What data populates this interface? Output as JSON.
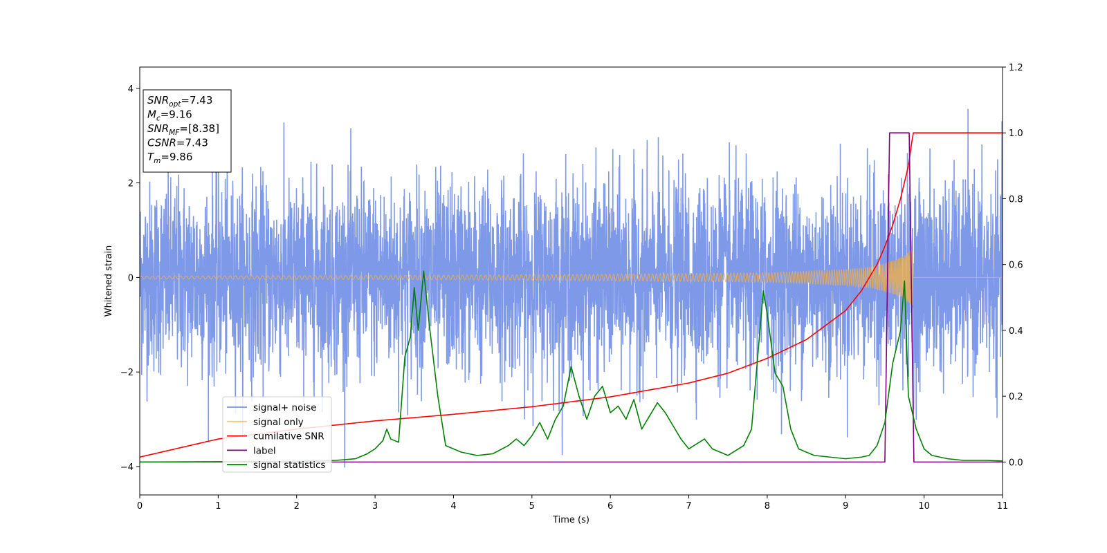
{
  "chart_data": {
    "type": "line",
    "xlabel": "Time (s)",
    "ylabel": "Whitened strain",
    "xlim": [
      0,
      11
    ],
    "ylim": [
      -4.6,
      4.45
    ],
    "y2lim": [
      -0.1,
      1.2
    ],
    "x_ticks": [
      "0",
      "1",
      "2",
      "3",
      "4",
      "5",
      "6",
      "7",
      "8",
      "9",
      "10",
      "11"
    ],
    "y_ticks": [
      "−4",
      "−2",
      "0",
      "2",
      "4"
    ],
    "y2_ticks": [
      "0.0",
      "0.2",
      "0.4",
      "0.6",
      "0.8",
      "1.0",
      "1.2"
    ],
    "grid": false,
    "legend_position": "lower-left",
    "info_box": [
      {
        "main": "SNR",
        "sub": "opt",
        "rest": "=7.43"
      },
      {
        "main": "M",
        "sub": "c",
        "rest": "=9.16"
      },
      {
        "main": "SNR",
        "sub": "MF",
        "rest": "=[8.38]"
      },
      {
        "main": "CSNR",
        "sub": "",
        "rest": "=7.43"
      },
      {
        "main": "T",
        "sub": "m",
        "rest": "=9.86"
      }
    ],
    "series": [
      {
        "name": "signal+ noise",
        "color": "#7893e8",
        "axis": "left",
        "description_values": {
          "mean": 0.0,
          "std": 1.0,
          "min": -4.15,
          "max": 4.05,
          "x_range": [
            0,
            11
          ]
        }
      },
      {
        "name": "signal only",
        "color": "#f5b041",
        "axis": "left",
        "envelope": {
          "x": [
            0,
            2,
            4,
            6,
            8,
            8.5,
            9,
            9.3,
            9.5,
            9.7,
            9.8,
            9.86
          ],
          "amp": [
            0.03,
            0.04,
            0.05,
            0.07,
            0.1,
            0.13,
            0.17,
            0.22,
            0.3,
            0.42,
            0.55,
            0.6
          ]
        }
      },
      {
        "name": "cumilative SNR",
        "color": "#ff0000",
        "axis": "right",
        "x": [
          0,
          1,
          2,
          3,
          4,
          5,
          6,
          7,
          7.5,
          8,
          8.5,
          9,
          9.2,
          9.4,
          9.5,
          9.6,
          9.7,
          9.8,
          9.86,
          10,
          11
        ],
        "y": [
          0.015,
          0.07,
          0.1,
          0.125,
          0.145,
          0.168,
          0.198,
          0.24,
          0.27,
          0.315,
          0.372,
          0.46,
          0.52,
          0.6,
          0.655,
          0.72,
          0.8,
          0.9,
          1.0,
          1.0,
          1.0
        ]
      },
      {
        "name": "label",
        "color": "#800080",
        "axis": "right",
        "x": [
          0,
          9.5,
          9.56,
          9.81,
          9.87,
          11
        ],
        "y": [
          0,
          0,
          1.0,
          1.0,
          0,
          0
        ]
      },
      {
        "name": "signal statistics",
        "color": "#008000",
        "axis": "right",
        "x": [
          0,
          1,
          2,
          2.5,
          2.75,
          2.9,
          3.0,
          3.1,
          3.15,
          3.2,
          3.3,
          3.38,
          3.45,
          3.5,
          3.55,
          3.62,
          3.7,
          3.8,
          3.9,
          4.0,
          4.1,
          4.3,
          4.5,
          4.7,
          4.8,
          4.9,
          5.0,
          5.1,
          5.2,
          5.3,
          5.4,
          5.5,
          5.6,
          5.7,
          5.8,
          5.9,
          6.0,
          6.1,
          6.2,
          6.3,
          6.4,
          6.5,
          6.6,
          6.7,
          6.8,
          6.9,
          7.0,
          7.2,
          7.3,
          7.5,
          7.7,
          7.8,
          7.9,
          7.95,
          8.0,
          8.1,
          8.2,
          8.3,
          8.4,
          8.6,
          8.8,
          9.0,
          9.2,
          9.3,
          9.4,
          9.5,
          9.6,
          9.7,
          9.75,
          9.8,
          9.9,
          10.0,
          10.1,
          10.3,
          10.5,
          10.8,
          11.0
        ],
        "y": [
          0,
          0.001,
          0.002,
          0.005,
          0.01,
          0.025,
          0.04,
          0.065,
          0.1,
          0.07,
          0.06,
          0.32,
          0.38,
          0.53,
          0.4,
          0.58,
          0.4,
          0.2,
          0.05,
          0.04,
          0.03,
          0.02,
          0.025,
          0.05,
          0.07,
          0.05,
          0.08,
          0.12,
          0.07,
          0.13,
          0.17,
          0.29,
          0.2,
          0.13,
          0.2,
          0.23,
          0.15,
          0.17,
          0.13,
          0.19,
          0.1,
          0.14,
          0.18,
          0.15,
          0.11,
          0.07,
          0.04,
          0.07,
          0.04,
          0.02,
          0.05,
          0.1,
          0.38,
          0.52,
          0.45,
          0.27,
          0.23,
          0.1,
          0.04,
          0.02,
          0.015,
          0.01,
          0.015,
          0.02,
          0.05,
          0.12,
          0.3,
          0.4,
          0.55,
          0.2,
          0.1,
          0.04,
          0.02,
          0.01,
          0.005,
          0.005,
          0.003
        ]
      }
    ]
  }
}
